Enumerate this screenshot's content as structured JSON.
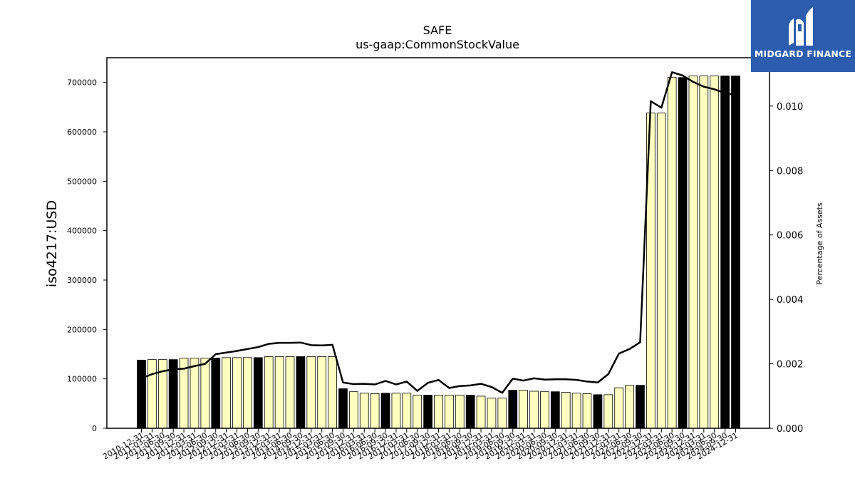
{
  "chart_data": {
    "type": "bar",
    "title": "SAFE",
    "subtitle": "us-gaap:CommonStockValue",
    "ylabel": "iso4217:USD",
    "y2label": "Percentage of Assets",
    "ylim": [
      0,
      750000
    ],
    "y2lim": [
      0,
      0.0115
    ],
    "yticks": [
      0,
      100000,
      200000,
      300000,
      400000,
      500000,
      600000,
      700000
    ],
    "y2ticks": [
      "0.000",
      "0.002",
      "0.004",
      "0.006",
      "0.008",
      "0.010"
    ],
    "y2tick_values": [
      0,
      0.002,
      0.004,
      0.006,
      0.008,
      0.01
    ],
    "grid": false,
    "categories": [
      "2010-12-31",
      "2011-03-31",
      "2011-06-30",
      "2011-09-30",
      "2011-12-31",
      "2012-03-31",
      "2012-06-30",
      "2012-09-30",
      "2012-12-31",
      "2013-03-31",
      "2013-06-30",
      "2013-09-30",
      "2013-12-31",
      "2014-03-31",
      "2014-06-30",
      "2014-09-30",
      "2014-12-31",
      "2015-03-31",
      "2015-06-30",
      "2015-09-30",
      "2015-12-31",
      "2016-03-31",
      "2016-06-30",
      "2016-09-30",
      "2016-12-31",
      "2017-03-31",
      "2017-06-30",
      "2017-09-30",
      "2017-12-31",
      "2018-03-31",
      "2018-06-30",
      "2018-09-30",
      "2018-12-31",
      "2019-03-31",
      "2019-06-30",
      "2019-09-30",
      "2019-12-31",
      "2020-03-31",
      "2020-06-30",
      "2020-09-30",
      "2020-12-31",
      "2021-03-31",
      "2021-06-30",
      "2021-09-30",
      "2021-12-31",
      "2022-03-31",
      "2022-06-30",
      "2022-09-30",
      "2022-12-31",
      "2023-03-31",
      "2023-06-30",
      "2023-09-30",
      "2023-12-31",
      "2024-03-31",
      "2024-06-30",
      "2024-09-30",
      "2024-12-31"
    ],
    "series": [
      {
        "values": [
          138000,
          139000,
          139000,
          139000,
          142000,
          142000,
          142000,
          142000,
          143000,
          143000,
          143000,
          143000,
          145000,
          145000,
          145000,
          145000,
          145000,
          145000,
          145000,
          80000,
          74000,
          71000,
          70000,
          71000,
          71000,
          71000,
          67000,
          67000,
          67000,
          67000,
          67000,
          67000,
          65000,
          61000,
          61000,
          77000,
          77000,
          75000,
          74000,
          74000,
          73000,
          71000,
          70000,
          68000,
          68000,
          82000,
          87000,
          87000,
          638000,
          638000,
          710000,
          710000,
          713000,
          713000,
          713000,
          713000,
          713000
        ],
        "q4_flags": [
          1,
          0,
          0,
          1,
          0,
          0,
          0,
          1,
          0,
          0,
          0,
          1,
          0,
          0,
          0,
          1,
          0,
          0,
          0,
          1,
          0,
          0,
          0,
          1,
          0,
          0,
          0,
          1,
          0,
          0,
          0,
          1,
          0,
          0,
          0,
          1,
          0,
          0,
          0,
          1,
          0,
          0,
          0,
          1,
          0,
          0,
          0,
          1,
          0,
          0,
          0,
          1,
          0,
          0,
          0,
          1,
          1
        ]
      },
      {
        "axis": "right",
        "values": [
          0.00155,
          0.00168,
          0.00177,
          0.00183,
          0.00185,
          0.00193,
          0.002,
          0.0023,
          0.00235,
          0.0024,
          0.00246,
          0.00252,
          0.00262,
          0.00265,
          0.00265,
          0.00266,
          0.00258,
          0.00257,
          0.00259,
          0.00142,
          0.00137,
          0.00138,
          0.00136,
          0.00147,
          0.00136,
          0.00145,
          0.00116,
          0.00141,
          0.0015,
          0.00125,
          0.00131,
          0.00133,
          0.00138,
          0.00128,
          0.0011,
          0.00154,
          0.00148,
          0.00155,
          0.00151,
          0.00152,
          0.00152,
          0.0015,
          0.00145,
          0.00142,
          0.00168,
          0.00232,
          0.00246,
          0.00267,
          0.01015,
          0.00995,
          0.01105,
          0.01095,
          0.01075,
          0.0106,
          0.01052,
          0.0104,
          0.01035
        ]
      }
    ]
  },
  "logo": {
    "text": "MIDGARD FINANCE"
  }
}
